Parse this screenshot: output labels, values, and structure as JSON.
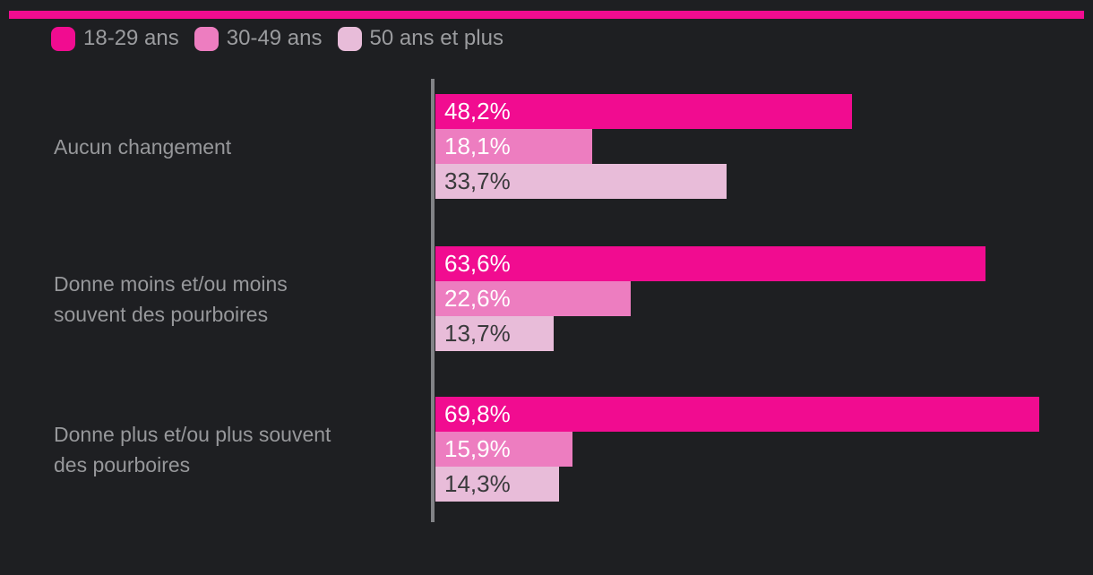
{
  "meta": {
    "background_color": "#1e1f22",
    "accent_stripe_color": "#f10c90",
    "axis_color": "#828387",
    "category_label_color": "#97989b",
    "legend_label_color": "#9b9c9f"
  },
  "legend": [
    {
      "label": "18-29 ans",
      "color": "#f10c90"
    },
    {
      "label": "30-49 ans",
      "color": "#ed7dc0"
    },
    {
      "label": "50 ans et plus",
      "color": "#e8bcd9"
    }
  ],
  "chart_data": {
    "type": "bar",
    "orientation": "horizontal",
    "title": "",
    "xlabel": "",
    "ylabel": "",
    "xlim": [
      0,
      76
    ],
    "grid": false,
    "legend_position": "top-left",
    "categories": [
      "Aucun changement",
      "Donne moins et/ou moins souvent des pourboires",
      "Donne plus et/ou plus souvent des pourboires"
    ],
    "categories_display": [
      "Aucun changement",
      "Donne moins et/ou moins\nsouvent des pourboires",
      "Donne plus et/ou plus souvent\ndes pourboires"
    ],
    "series": [
      {
        "name": "18-29 ans",
        "color": "#f10c90",
        "label_color": "#ffffff",
        "values": [
          48.2,
          63.6,
          69.8
        ],
        "labels": [
          "48,2%",
          "63,6%",
          "69,8%"
        ]
      },
      {
        "name": "30-49 ans",
        "color": "#ed7dc0",
        "label_color": "#ffffff",
        "values": [
          18.1,
          22.6,
          15.9
        ],
        "labels": [
          "18,1%",
          "22,6%",
          "15,9%"
        ]
      },
      {
        "name": "50 ans et plus",
        "color": "#e8bcd9",
        "label_color": "#3a3a3c",
        "values": [
          33.7,
          13.7,
          14.3
        ],
        "labels": [
          "33,7%",
          "13,7%",
          "14,3%"
        ]
      }
    ]
  }
}
